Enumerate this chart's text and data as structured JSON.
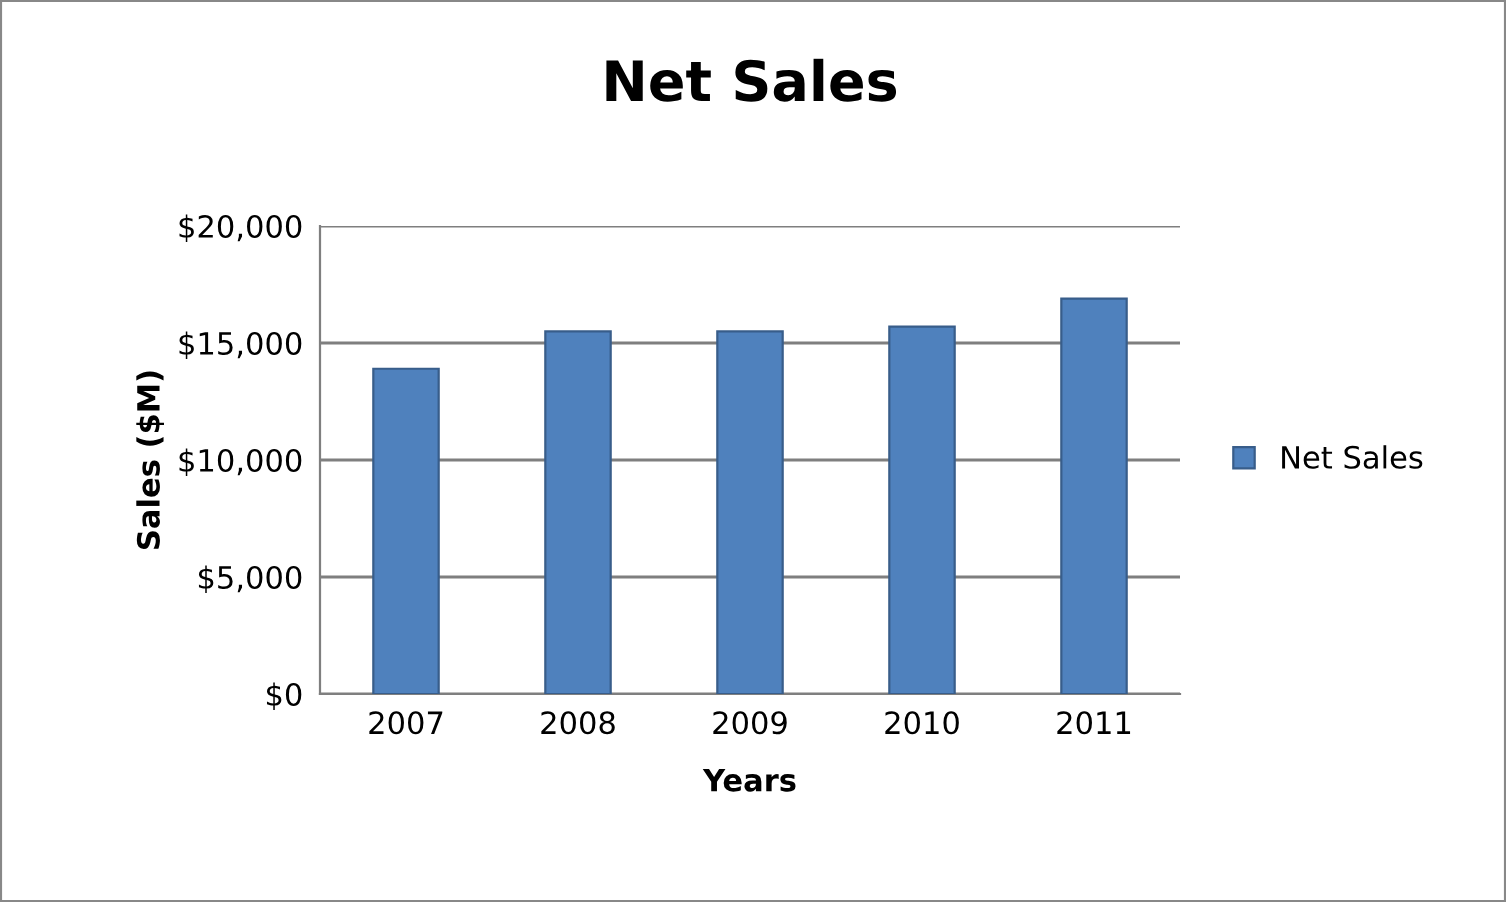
{
  "chart_data": {
    "type": "bar",
    "title": "Net Sales",
    "xlabel": "Years",
    "ylabel": "Sales ($M)",
    "categories": [
      "2007",
      "2008",
      "2009",
      "2010",
      "2011"
    ],
    "series": [
      {
        "name": "Net Sales",
        "color": "#4f81bd",
        "values": [
          13900,
          15500,
          15500,
          15700,
          16900
        ]
      }
    ],
    "ylim": [
      0,
      20000
    ],
    "yticks": [
      {
        "value": 0,
        "label": "$0"
      },
      {
        "value": 5000,
        "label": "$5,000"
      },
      {
        "value": 10000,
        "label": "$10,000"
      },
      {
        "value": 15000,
        "label": "$15,000"
      },
      {
        "value": 20000,
        "label": "$20,000"
      }
    ],
    "grid": "y",
    "legend": "right"
  }
}
